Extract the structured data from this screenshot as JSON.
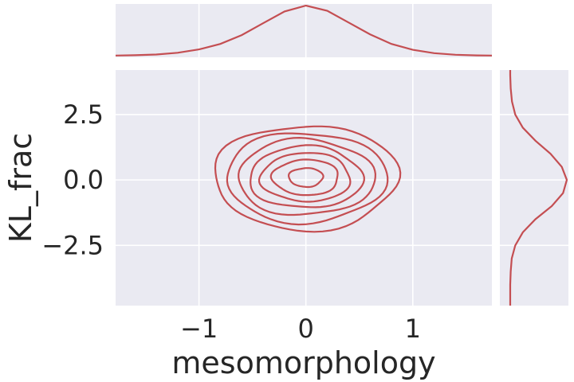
{
  "chart_data": {
    "type": "kde-joint",
    "xlabel": "mesomorphology",
    "ylabel": "KL_frac",
    "xlim": [
      -1.78,
      1.74
    ],
    "ylim": [
      -4.8,
      4.2
    ],
    "x_ticks": [
      -1,
      0,
      1
    ],
    "x_tick_labels": [
      "−1",
      "0",
      "1"
    ],
    "y_ticks": [
      -2.5,
      0,
      2.5
    ],
    "y_tick_labels": [
      "−2.5",
      "0.0",
      "2.5"
    ],
    "grid": true,
    "colors": {
      "line": "#c44e52",
      "background": "#eaeaf2",
      "grid": "#ffffff",
      "text": "#262626"
    },
    "joint_contours": {
      "center": [
        0.0,
        0.1
      ],
      "levels": [
        {
          "rx": 0.86,
          "ry": 2.0
        },
        {
          "rx": 0.75,
          "ry": 1.72
        },
        {
          "rx": 0.64,
          "ry": 1.45
        },
        {
          "rx": 0.53,
          "ry": 1.18
        },
        {
          "rx": 0.42,
          "ry": 0.93
        },
        {
          "rx": 0.31,
          "ry": 0.68
        },
        {
          "rx": 0.16,
          "ry": 0.36
        }
      ]
    },
    "marginal_x": {
      "x": [
        -1.78,
        -1.6,
        -1.4,
        -1.2,
        -1.0,
        -0.8,
        -0.6,
        -0.4,
        -0.2,
        0.0,
        0.2,
        0.4,
        0.6,
        0.8,
        1.0,
        1.2,
        1.4,
        1.6,
        1.74
      ],
      "density": [
        0.002,
        0.006,
        0.016,
        0.04,
        0.085,
        0.16,
        0.28,
        0.44,
        0.6,
        0.68,
        0.61,
        0.45,
        0.29,
        0.16,
        0.08,
        0.035,
        0.013,
        0.004,
        0.002
      ]
    },
    "marginal_y": {
      "y": [
        -4.8,
        -4.0,
        -3.5,
        -3.0,
        -2.5,
        -2.0,
        -1.5,
        -1.0,
        -0.5,
        0.0,
        0.5,
        1.0,
        1.5,
        2.0,
        2.5,
        3.0,
        3.5,
        4.0,
        4.2
      ],
      "density": [
        0.0,
        0.0,
        0.002,
        0.006,
        0.02,
        0.05,
        0.1,
        0.165,
        0.21,
        0.225,
        0.205,
        0.16,
        0.1,
        0.05,
        0.02,
        0.007,
        0.002,
        0.0,
        0.0
      ]
    }
  }
}
